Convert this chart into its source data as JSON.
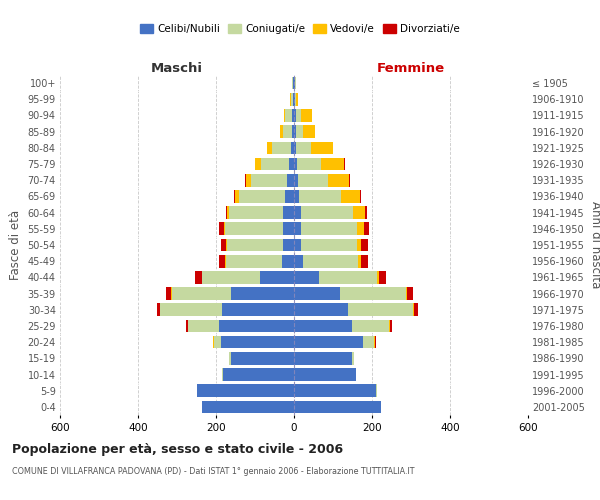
{
  "age_groups": [
    "0-4",
    "5-9",
    "10-14",
    "15-19",
    "20-24",
    "25-29",
    "30-34",
    "35-39",
    "40-44",
    "45-49",
    "50-54",
    "55-59",
    "60-64",
    "65-69",
    "70-74",
    "75-79",
    "80-84",
    "85-89",
    "90-94",
    "95-99",
    "100+"
  ],
  "birth_years": [
    "2001-2005",
    "1996-2000",
    "1991-1995",
    "1986-1990",
    "1981-1985",
    "1976-1980",
    "1971-1975",
    "1966-1970",
    "1961-1965",
    "1956-1960",
    "1951-1955",
    "1946-1950",
    "1941-1945",
    "1936-1940",
    "1931-1935",
    "1926-1930",
    "1921-1925",
    "1916-1920",
    "1911-1915",
    "1906-1910",
    "≤ 1905"
  ],
  "male": {
    "celibi": [
      235,
      248,
      182,
      162,
      188,
      192,
      185,
      162,
      88,
      32,
      28,
      28,
      28,
      23,
      18,
      13,
      8,
      6,
      4,
      3,
      2
    ],
    "coniugati": [
      1,
      2,
      2,
      4,
      18,
      80,
      158,
      152,
      148,
      143,
      143,
      148,
      138,
      118,
      93,
      72,
      48,
      22,
      18,
      4,
      2
    ],
    "vedovi": [
      0,
      0,
      0,
      0,
      1,
      1,
      1,
      1,
      1,
      2,
      3,
      3,
      5,
      10,
      12,
      15,
      14,
      7,
      4,
      2,
      1
    ],
    "divorziati": [
      0,
      0,
      0,
      0,
      1,
      4,
      8,
      12,
      18,
      15,
      14,
      14,
      4,
      3,
      2,
      0,
      0,
      0,
      0,
      0,
      0
    ]
  },
  "female": {
    "nubili": [
      222,
      210,
      158,
      148,
      178,
      148,
      138,
      118,
      65,
      22,
      18,
      18,
      18,
      13,
      10,
      8,
      5,
      4,
      4,
      2,
      2
    ],
    "coniugate": [
      1,
      2,
      2,
      5,
      28,
      95,
      168,
      168,
      148,
      143,
      143,
      143,
      133,
      108,
      78,
      62,
      38,
      18,
      13,
      3,
      2
    ],
    "vedove": [
      0,
      0,
      0,
      0,
      1,
      2,
      2,
      3,
      4,
      7,
      11,
      18,
      32,
      48,
      53,
      58,
      57,
      33,
      28,
      4,
      2
    ],
    "divorziate": [
      0,
      0,
      0,
      0,
      2,
      5,
      10,
      17,
      20,
      17,
      17,
      14,
      3,
      3,
      2,
      2,
      0,
      0,
      0,
      0,
      0
    ]
  },
  "color_celibi": "#4472c4",
  "color_coniugati": "#c5d9a0",
  "color_vedovi": "#ffc000",
  "color_divorziati": "#cc0000",
  "xlim": 600,
  "title": "Popolazione per età, sesso e stato civile - 2006",
  "subtitle": "COMUNE DI VILLAFRANCA PADOVANA (PD) - Dati ISTAT 1° gennaio 2006 - Elaborazione TUTTITALIA.IT",
  "ylabel_left": "Fasce di età",
  "ylabel_right": "Anni di nascita",
  "label_maschi": "Maschi",
  "label_femmine": "Femmine",
  "legend_labels": [
    "Celibi/Nubili",
    "Coniugati/e",
    "Vedovi/e",
    "Divorziati/e"
  ],
  "background_color": "#ffffff",
  "xticks": [
    -600,
    -400,
    -200,
    0,
    200,
    400,
    600
  ]
}
